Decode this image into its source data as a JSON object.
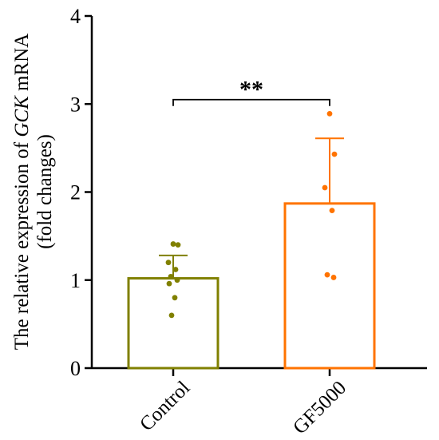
{
  "chart_data": {
    "type": "bar",
    "ylabel_line1_prefix": "The relative expression of ",
    "ylabel_line1_gene": "GCK",
    "ylabel_line1_suffix": " mRNA",
    "ylabel_line2": "(fold changes)",
    "ylim": [
      0,
      4
    ],
    "yticks": [
      0,
      1,
      2,
      3,
      4
    ],
    "ytick_labels": [
      "0",
      "1",
      "2",
      "3",
      "4"
    ],
    "grid": false,
    "categories": [
      "Control",
      "GF5000"
    ],
    "values": [
      1.02,
      1.87
    ],
    "error_upper": [
      1.28,
      2.61
    ],
    "points": [
      [
        1.41,
        1.4,
        1.2,
        1.12,
        1.04,
        1.0,
        0.96,
        0.8,
        0.6
      ],
      [
        2.89,
        2.43,
        2.05,
        1.79,
        1.06,
        1.03
      ]
    ],
    "colors": [
      "#808000",
      "#ff7300"
    ],
    "significance": {
      "label": "**",
      "between": [
        "Control",
        "GF5000"
      ],
      "y": 3.05
    }
  }
}
